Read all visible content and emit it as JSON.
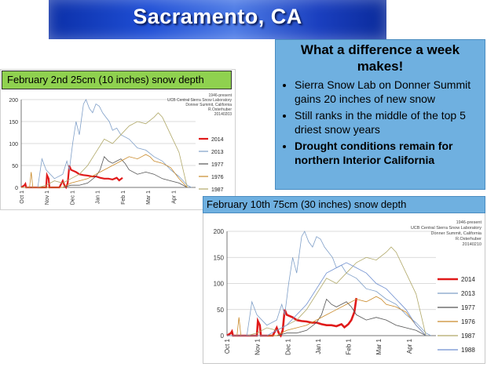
{
  "banner": {
    "title": "Sacramento, CA"
  },
  "bullets": {
    "title": "What a difference a week makes!",
    "items": [
      {
        "text": "Sierra Snow Lab on Donner Summit gains 20 inches of new snow",
        "bold": false
      },
      {
        "text": "Still ranks in the middle of the top 5 driest snow years",
        "bold": false
      },
      {
        "text": "Drought conditions remain for northern Interior California",
        "bold": true
      }
    ]
  },
  "chart1": {
    "label": "February 2nd 25cm (10 inches) snow depth",
    "credit": [
      "1946-present",
      "UCB Central Sierra Snow Laboratory",
      "Donner Summit, California",
      "R.Osterhuber",
      "20140203"
    ]
  },
  "chart2": {
    "label": "February 10th 75cm (30 inches) snow depth",
    "credit": [
      "1946-present",
      "UCB Central Sierra Snow Laboratory",
      "Donner Summit, California",
      "R.Osterhuber",
      "20140210"
    ]
  },
  "colors": {
    "2014": "#e01a1a",
    "2013": "#7f9fc8",
    "1977": "#555555",
    "1976": "#c98a2a",
    "1987": "#b0a868",
    "1988": "#6f8fd0"
  },
  "chart_data": [
    {
      "type": "line",
      "ylim": [
        0,
        200
      ],
      "yticks": [
        0,
        50,
        100,
        150,
        200
      ],
      "xticks": [
        "Oct 1",
        "Nov 1",
        "Dec 1",
        "Jan 1",
        "Feb 1",
        "Mar 1",
        "Apr 1"
      ],
      "series": [
        {
          "name": "2014",
          "x": [
            0,
            4,
            5,
            6,
            7,
            8,
            30,
            31,
            33,
            34,
            40,
            46,
            50,
            52,
            54,
            56,
            58,
            60,
            66,
            70,
            75,
            80,
            85,
            90,
            95,
            100,
            105,
            110,
            115,
            118,
            122
          ],
          "y": [
            0,
            5,
            8,
            0,
            0,
            0,
            0,
            28,
            20,
            0,
            0,
            0,
            15,
            5,
            0,
            10,
            50,
            40,
            35,
            30,
            28,
            27,
            25,
            25,
            22,
            20,
            20,
            18,
            22,
            16,
            22
          ]
        },
        {
          "name": "2013",
          "x": [
            0,
            20,
            25,
            30,
            40,
            50,
            55,
            58,
            62,
            66,
            70,
            75,
            78,
            82,
            86,
            90,
            94,
            98,
            102,
            106,
            110,
            115,
            120,
            130,
            140,
            150,
            160,
            170,
            180,
            190,
            200,
            205
          ],
          "y": [
            0,
            0,
            65,
            40,
            20,
            30,
            60,
            40,
            100,
            150,
            120,
            190,
            200,
            180,
            170,
            190,
            185,
            170,
            160,
            150,
            130,
            135,
            120,
            110,
            90,
            85,
            70,
            60,
            40,
            25,
            5,
            0
          ]
        },
        {
          "name": "1977",
          "x": [
            0,
            30,
            40,
            50,
            60,
            70,
            80,
            90,
            95,
            100,
            105,
            110,
            115,
            120,
            125,
            130,
            140,
            150,
            160,
            170,
            180,
            190,
            200
          ],
          "y": [
            0,
            0,
            0,
            0,
            5,
            5,
            10,
            25,
            40,
            70,
            60,
            55,
            60,
            65,
            55,
            40,
            30,
            35,
            30,
            20,
            15,
            10,
            0
          ]
        },
        {
          "name": "1976",
          "x": [
            0,
            10,
            12,
            14,
            40,
            50,
            60,
            70,
            80,
            90,
            100,
            110,
            120,
            130,
            140,
            145,
            150,
            155,
            160,
            170,
            180,
            190,
            200
          ],
          "y": [
            0,
            0,
            35,
            0,
            0,
            0,
            10,
            15,
            20,
            30,
            40,
            50,
            60,
            70,
            65,
            70,
            75,
            70,
            60,
            55,
            45,
            20,
            0
          ]
        },
        {
          "name": "1987",
          "x": [
            0,
            20,
            30,
            40,
            50,
            60,
            70,
            80,
            90,
            100,
            110,
            120,
            130,
            140,
            150,
            160,
            165,
            170,
            175,
            180,
            190,
            200
          ],
          "y": [
            0,
            0,
            5,
            15,
            10,
            20,
            30,
            50,
            80,
            110,
            100,
            120,
            140,
            150,
            145,
            160,
            170,
            160,
            140,
            120,
            80,
            0
          ]
        }
      ]
    },
    {
      "type": "line",
      "ylim": [
        0,
        200
      ],
      "yticks": [
        0,
        50,
        100,
        150,
        200
      ],
      "xticks": [
        "Oct 1",
        "Nov 1",
        "Dec 1",
        "Jan 1",
        "Feb 1",
        "Mar 1",
        "Apr 1"
      ],
      "series": [
        {
          "name": "2014",
          "x": [
            0,
            4,
            5,
            6,
            7,
            8,
            30,
            31,
            33,
            34,
            40,
            46,
            50,
            52,
            54,
            56,
            58,
            60,
            66,
            70,
            75,
            80,
            85,
            90,
            95,
            100,
            105,
            110,
            115,
            118,
            122,
            125,
            128,
            130
          ],
          "y": [
            0,
            5,
            8,
            0,
            0,
            0,
            0,
            28,
            20,
            0,
            0,
            0,
            15,
            5,
            0,
            10,
            50,
            40,
            35,
            30,
            28,
            27,
            25,
            25,
            22,
            20,
            20,
            18,
            22,
            16,
            22,
            30,
            45,
            72
          ]
        },
        {
          "name": "2013",
          "x": [
            0,
            20,
            25,
            30,
            40,
            50,
            55,
            58,
            62,
            66,
            70,
            75,
            78,
            82,
            86,
            90,
            94,
            98,
            102,
            106,
            110,
            115,
            120,
            130,
            140,
            150,
            160,
            170,
            180,
            190,
            200,
            205
          ],
          "y": [
            0,
            0,
            65,
            40,
            20,
            30,
            60,
            40,
            100,
            150,
            120,
            190,
            200,
            180,
            170,
            190,
            185,
            170,
            160,
            150,
            130,
            135,
            120,
            110,
            90,
            85,
            70,
            60,
            40,
            25,
            5,
            0
          ]
        },
        {
          "name": "1977",
          "x": [
            0,
            30,
            40,
            50,
            60,
            70,
            80,
            90,
            95,
            100,
            105,
            110,
            115,
            120,
            125,
            130,
            140,
            150,
            160,
            170,
            180,
            190,
            200
          ],
          "y": [
            0,
            0,
            0,
            0,
            5,
            5,
            10,
            25,
            40,
            70,
            60,
            55,
            60,
            65,
            55,
            40,
            30,
            35,
            30,
            20,
            15,
            10,
            0
          ]
        },
        {
          "name": "1976",
          "x": [
            0,
            10,
            12,
            14,
            40,
            50,
            60,
            70,
            80,
            90,
            100,
            110,
            120,
            130,
            140,
            145,
            150,
            155,
            160,
            170,
            180,
            190,
            200
          ],
          "y": [
            0,
            0,
            35,
            0,
            0,
            0,
            10,
            15,
            20,
            30,
            40,
            50,
            60,
            70,
            65,
            70,
            75,
            70,
            60,
            55,
            45,
            20,
            0
          ]
        },
        {
          "name": "1987",
          "x": [
            0,
            20,
            30,
            40,
            50,
            60,
            70,
            80,
            90,
            100,
            110,
            120,
            130,
            140,
            150,
            160,
            165,
            170,
            175,
            180,
            190,
            200
          ],
          "y": [
            0,
            0,
            5,
            15,
            10,
            20,
            30,
            50,
            80,
            110,
            100,
            120,
            140,
            150,
            145,
            160,
            170,
            160,
            140,
            120,
            80,
            0
          ]
        },
        {
          "name": "1988",
          "x": [
            0,
            40,
            50,
            60,
            70,
            80,
            90,
            100,
            110,
            120,
            130,
            140,
            150,
            160,
            170,
            180,
            190,
            200
          ],
          "y": [
            0,
            0,
            10,
            20,
            40,
            60,
            90,
            120,
            130,
            140,
            130,
            120,
            100,
            90,
            70,
            50,
            20,
            0
          ]
        }
      ]
    }
  ]
}
